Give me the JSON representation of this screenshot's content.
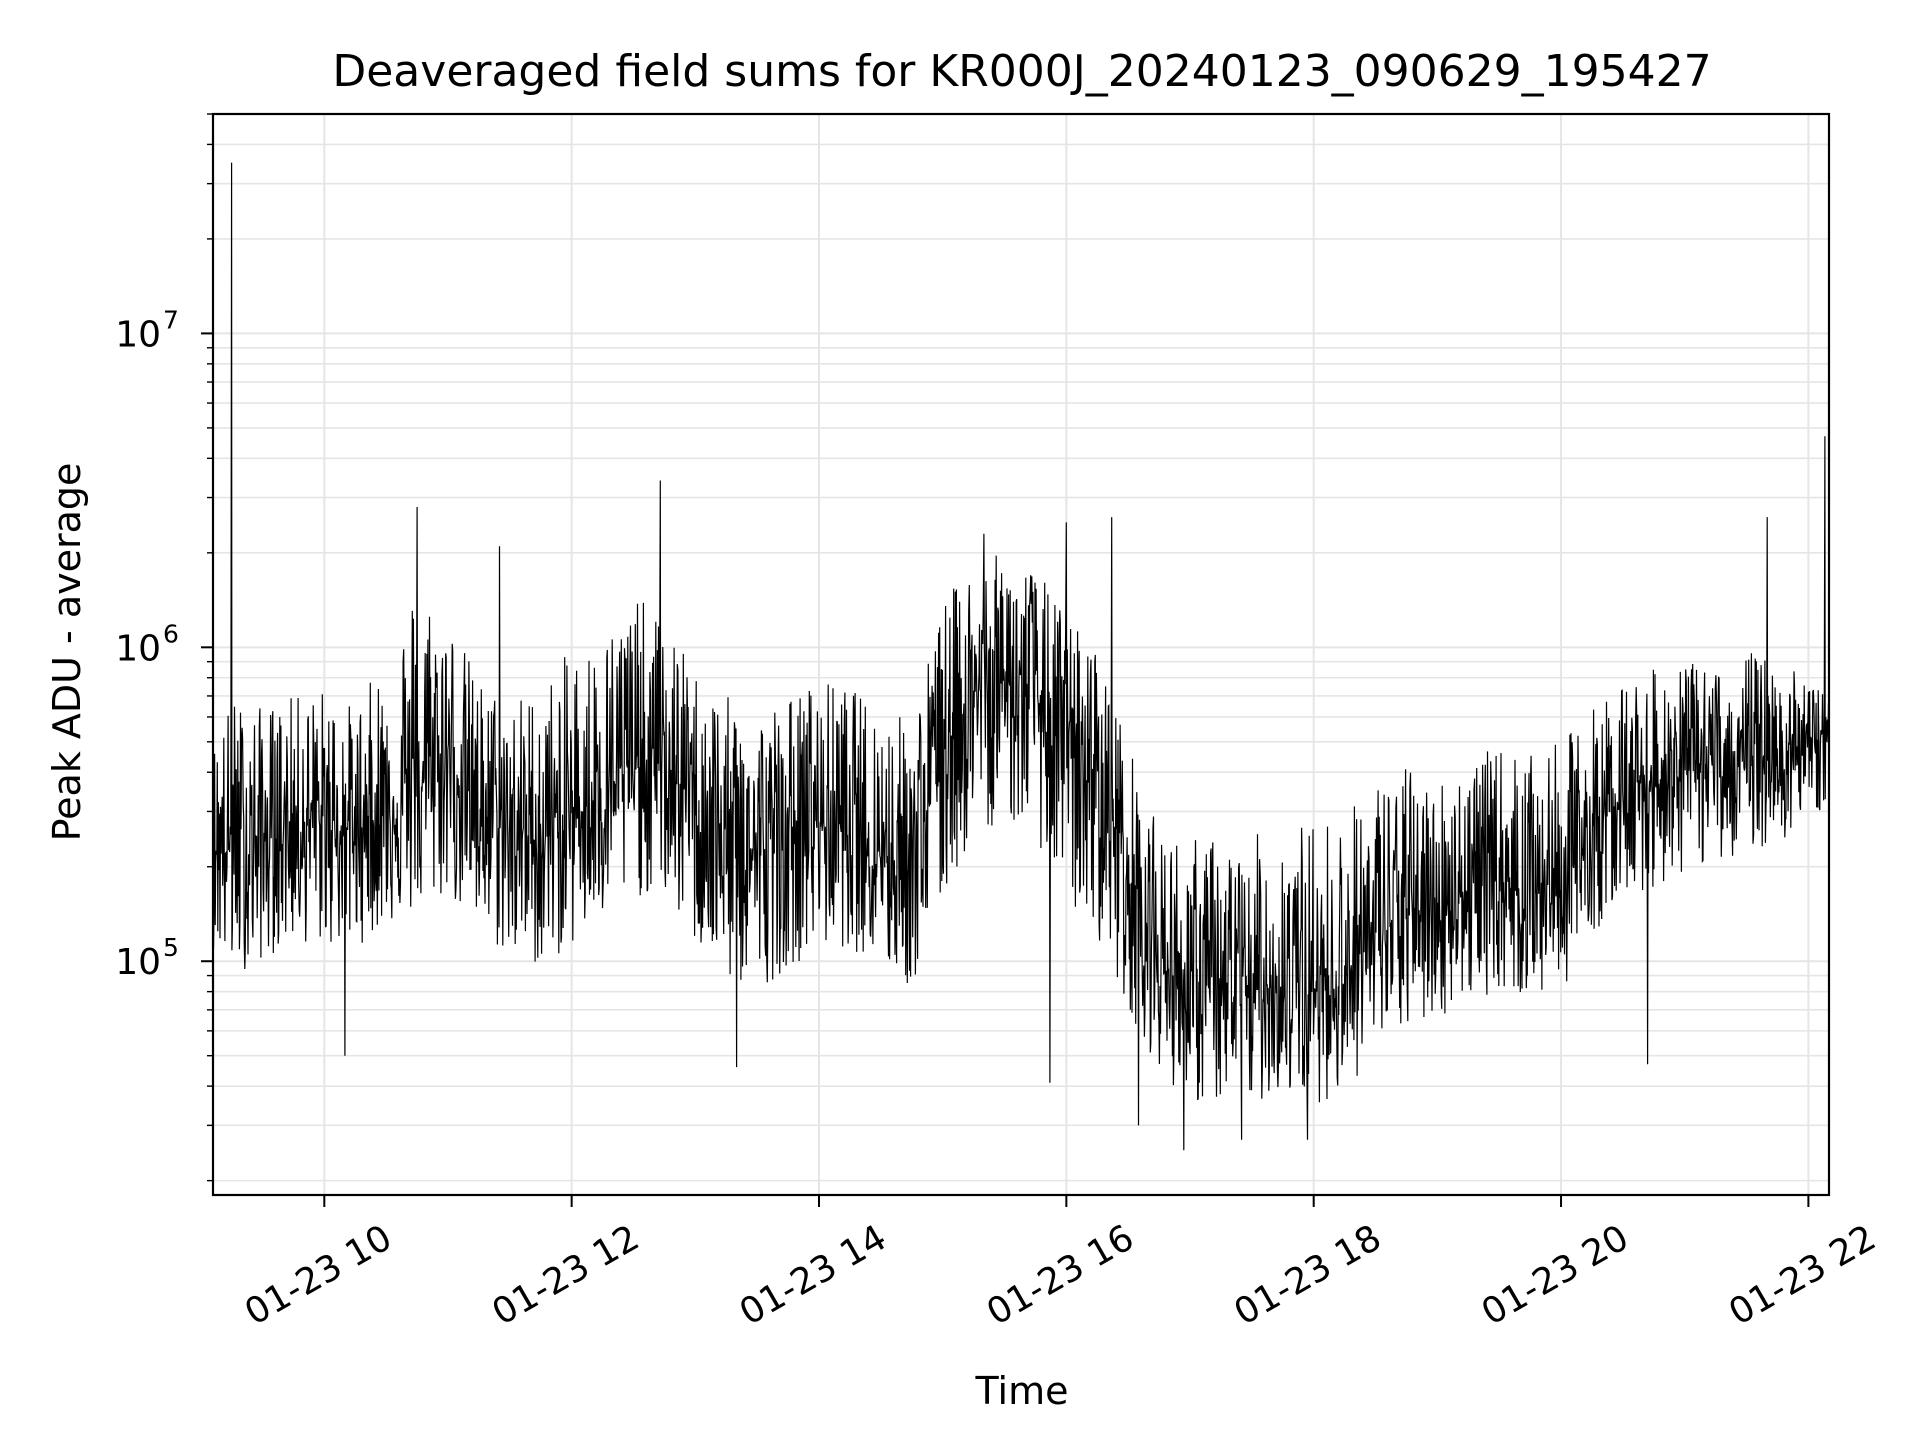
{
  "chart_data": {
    "type": "line",
    "title": "Deaveraged field sums for KR000J_20240123_090629_195427",
    "xlabel": "Time",
    "ylabel": "Peak ADU - average",
    "yscale": "log",
    "ylim": [
      18000,
      50000000
    ],
    "xlim": [
      "2024-01-23 09:06",
      "2024-01-23 22:10"
    ],
    "grid": true,
    "grid_color": "#e5e5e5",
    "line_color": "#000000",
    "x_ticks": [
      {
        "time": "2024-01-23 10:00",
        "label": "01-23 10"
      },
      {
        "time": "2024-01-23 12:00",
        "label": "01-23 12"
      },
      {
        "time": "2024-01-23 14:00",
        "label": "01-23 14"
      },
      {
        "time": "2024-01-23 16:00",
        "label": "01-23 16"
      },
      {
        "time": "2024-01-23 18:00",
        "label": "01-23 18"
      },
      {
        "time": "2024-01-23 20:00",
        "label": "01-23 20"
      },
      {
        "time": "2024-01-23 22:00",
        "label": "01-23 22"
      }
    ],
    "y_ticks": [
      {
        "value": 100000,
        "base": "10",
        "exponent": "5"
      },
      {
        "value": 1000000,
        "base": "10",
        "exponent": "6"
      },
      {
        "value": 10000000,
        "base": "10",
        "exponent": "7"
      }
    ],
    "series": [
      {
        "x": [
          "2024-01-23 09:06",
          "2024-01-23 09:15",
          "2024-01-23 09:30",
          "2024-01-23 09:45",
          "2024-01-23 10:00",
          "2024-01-23 10:15",
          "2024-01-23 10:30",
          "2024-01-23 10:45",
          "2024-01-23 11:00",
          "2024-01-23 11:15",
          "2024-01-23 11:30",
          "2024-01-23 11:45",
          "2024-01-23 12:00",
          "2024-01-23 12:15",
          "2024-01-23 12:30",
          "2024-01-23 12:45",
          "2024-01-23 13:00",
          "2024-01-23 13:15",
          "2024-01-23 13:30",
          "2024-01-23 13:45",
          "2024-01-23 14:00",
          "2024-01-23 14:15",
          "2024-01-23 14:30",
          "2024-01-23 14:45",
          "2024-01-23 15:00",
          "2024-01-23 15:15",
          "2024-01-23 15:30",
          "2024-01-23 15:45",
          "2024-01-23 16:00",
          "2024-01-23 16:15",
          "2024-01-23 16:30",
          "2024-01-23 16:45",
          "2024-01-23 17:00",
          "2024-01-23 17:15",
          "2024-01-23 17:30",
          "2024-01-23 17:45",
          "2024-01-23 18:00",
          "2024-01-23 18:15",
          "2024-01-23 18:30",
          "2024-01-23 18:45",
          "2024-01-23 19:00",
          "2024-01-23 19:15",
          "2024-01-23 19:30",
          "2024-01-23 19:45",
          "2024-01-23 20:00",
          "2024-01-23 20:15",
          "2024-01-23 20:30",
          "2024-01-23 20:45",
          "2024-01-23 21:00",
          "2024-01-23 21:15",
          "2024-01-23 21:30",
          "2024-01-23 21:45",
          "2024-01-23 22:00",
          "2024-01-23 22:10"
        ],
        "y": [
          250000,
          220000,
          240000,
          270000,
          280000,
          260000,
          300000,
          350000,
          450000,
          300000,
          260000,
          240000,
          280000,
          350000,
          420000,
          400000,
          330000,
          220000,
          220000,
          260000,
          280000,
          270000,
          230000,
          200000,
          500000,
          700000,
          800000,
          700000,
          450000,
          400000,
          200000,
          100000,
          80000,
          80000,
          80000,
          85000,
          80000,
          90000,
          120000,
          140000,
          150000,
          170000,
          180000,
          170000,
          175000,
          250000,
          350000,
          380000,
          400000,
          430000,
          420000,
          450000,
          480000,
          550000
        ],
        "y_high": [
          500000,
          700000,
          650000,
          700000,
          750000,
          650000,
          950000,
          1700000,
          1300000,
          800000,
          700000,
          750000,
          1000000,
          1100000,
          1500000,
          1200000,
          850000,
          700000,
          650000,
          700000,
          800000,
          750000,
          650000,
          600000,
          1400000,
          1900000,
          2000000,
          1800000,
          1300000,
          1000000,
          500000,
          260000,
          250000,
          250000,
          250000,
          280000,
          280000,
          300000,
          380000,
          420000,
          380000,
          450000,
          480000,
          450000,
          500000,
          650000,
          800000,
          850000,
          900000,
          850000,
          1000000,
          900000,
          800000,
          700000
        ],
        "y_low": [
          110000,
          90000,
          100000,
          115000,
          110000,
          110000,
          130000,
          140000,
          160000,
          120000,
          100000,
          95000,
          110000,
          130000,
          160000,
          160000,
          110000,
          85000,
          80000,
          95000,
          110000,
          110000,
          95000,
          80000,
          150000,
          250000,
          280000,
          250000,
          150000,
          120000,
          70000,
          45000,
          35000,
          35000,
          35000,
          38000,
          35000,
          38000,
          50000,
          60000,
          65000,
          75000,
          80000,
          75000,
          80000,
          120000,
          160000,
          170000,
          190000,
          210000,
          220000,
          240000,
          260000,
          330000
        ],
        "spikes": [
          {
            "x": "2024-01-23 09:15",
            "y": 35000000
          },
          {
            "x": "2024-01-23 10:45",
            "y": 2800000
          },
          {
            "x": "2024-01-23 11:25",
            "y": 2100000
          },
          {
            "x": "2024-01-23 12:43",
            "y": 3400000
          },
          {
            "x": "2024-01-23 15:20",
            "y": 2300000
          },
          {
            "x": "2024-01-23 16:00",
            "y": 2500000
          },
          {
            "x": "2024-01-23 16:22",
            "y": 2600000
          },
          {
            "x": "2024-01-23 21:40",
            "y": 2600000
          },
          {
            "x": "2024-01-23 22:08",
            "y": 4700000
          }
        ],
        "dips": [
          {
            "x": "2024-01-23 10:10",
            "y": 50000
          },
          {
            "x": "2024-01-23 13:20",
            "y": 46000
          },
          {
            "x": "2024-01-23 15:52",
            "y": 41000
          },
          {
            "x": "2024-01-23 16:35",
            "y": 30000
          },
          {
            "x": "2024-01-23 16:57",
            "y": 25000
          },
          {
            "x": "2024-01-23 17:25",
            "y": 27000
          },
          {
            "x": "2024-01-23 17:57",
            "y": 27000
          },
          {
            "x": "2024-01-23 20:42",
            "y": 47000
          }
        ]
      }
    ]
  }
}
